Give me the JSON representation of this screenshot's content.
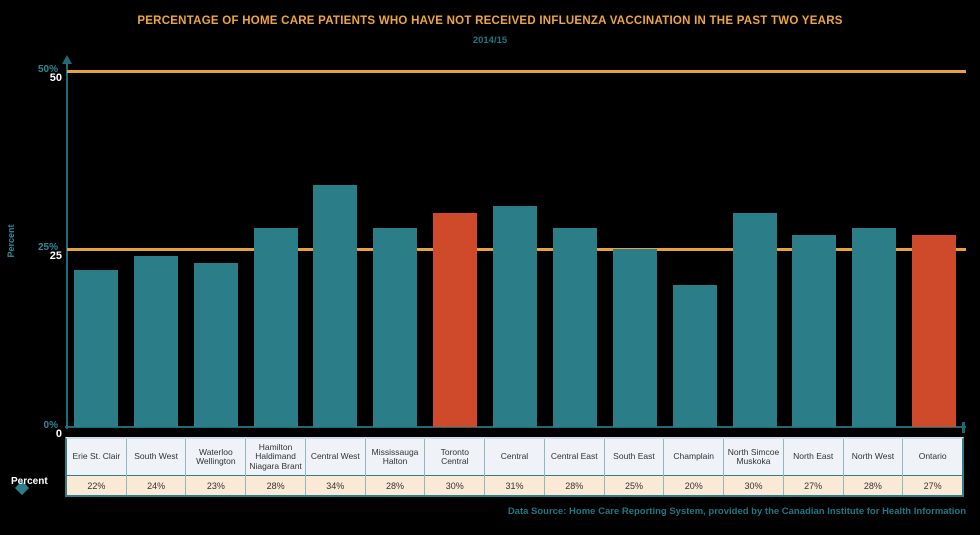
{
  "title": "PERCENTAGE OF HOME CARE PATIENTS WHO HAVE NOT RECEIVED INFLUENZA VACCINATION IN THE PAST TWO YEARS",
  "subtitle": "2014/15",
  "colors": {
    "background": "#000000",
    "title_text": "#EFA63C",
    "subtitle_text": "#1E7682",
    "bar_teal": "#2B7E88",
    "bar_highlight_orange": "#CF4A2A",
    "reference_line_gold": "#E8A23B",
    "axis_teal": "#1C6B77",
    "tick_label_teal": "#2E8A96",
    "tick_label_white": "#FFFFFF",
    "table_header_bg": "#EFF2F7",
    "table_value_bg": "#FAEAD5",
    "table_border_teal": "#2E7F8A",
    "source_text_teal": "#1B7884"
  },
  "y_axis": {
    "title": "Percent",
    "ticks": [
      {
        "value": 0,
        "percent_label": "0%",
        "plain_label": "0"
      },
      {
        "value": 25,
        "percent_label": "25%",
        "plain_label": "25"
      },
      {
        "value": 50,
        "percent_label": "50%",
        "plain_label": "50"
      }
    ]
  },
  "legend": {
    "label": "Percent",
    "marker": "diamond-icon"
  },
  "chart_data": {
    "type": "bar",
    "title": "PERCENTAGE OF HOME CARE PATIENTS WHO HAVE NOT RECEIVED INFLUENZA VACCINATION IN THE PAST TWO YEARS",
    "subtitle": "2014/15",
    "xlabel": "",
    "ylabel": "Percent",
    "ylim": [
      0,
      52
    ],
    "yticks": [
      0,
      25,
      50
    ],
    "reference_lines": [
      25,
      50
    ],
    "grid": "horizontal-reference-lines-only",
    "legend_position": "bottom-left",
    "categories": [
      "Erie St. Clair",
      "South West",
      "Waterloo Wellington",
      "Hamilton Haldimand Niagara Brant",
      "Central West",
      "Mississauga Halton",
      "Toronto Central",
      "Central",
      "Central East",
      "South East",
      "Champlain",
      "North Simcoe Muskoka",
      "North East",
      "North West",
      "Ontario"
    ],
    "values": [
      22,
      24,
      23,
      28,
      34,
      28,
      30,
      31,
      28,
      25,
      20,
      30,
      27,
      28,
      27
    ],
    "highlight_indices": [
      6,
      14
    ],
    "highlighted_categories": [
      "Toronto Central",
      "Ontario"
    ]
  },
  "table": {
    "headers": [
      "Erie St. Clair",
      "South West",
      "Waterloo Wellington",
      "Hamilton Haldimand Niagara Brant",
      "Central West",
      "Mississauga Halton",
      "Toronto Central",
      "Central",
      "Central East",
      "South East",
      "Champlain",
      "North Simcoe Muskoka",
      "North East",
      "North West",
      "Ontario"
    ],
    "values": [
      "22%",
      "24%",
      "23%",
      "28%",
      "34%",
      "28%",
      "30%",
      "31%",
      "28%",
      "25%",
      "20%",
      "30%",
      "27%",
      "28%",
      "27%"
    ]
  },
  "source": "Data Source: Home Care Reporting System, provided by the Canadian Institute for Health Information"
}
